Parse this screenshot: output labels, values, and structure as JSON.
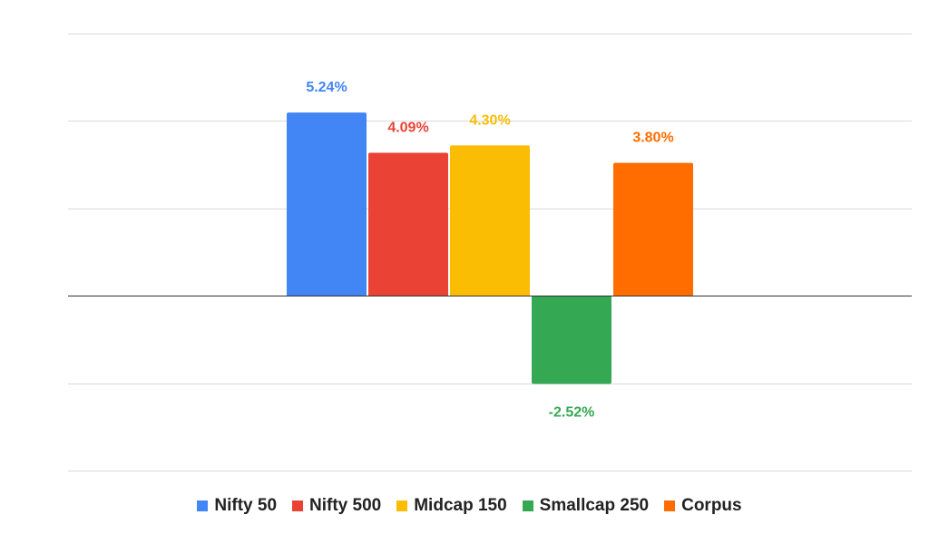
{
  "chart_data": {
    "type": "bar",
    "title": "",
    "xlabel": "",
    "ylabel": "",
    "ylim": [
      -5,
      7.5
    ],
    "grid": true,
    "legend_position": "bottom",
    "series": [
      {
        "name": "Nifty 50",
        "value": 5.24,
        "label": "5.24%",
        "color": "#4285F4"
      },
      {
        "name": "Nifty 500",
        "value": 4.09,
        "label": "4.09%",
        "color": "#EA4335"
      },
      {
        "name": "Midcap 150",
        "value": 4.3,
        "label": "4.30%",
        "color": "#FBBC04"
      },
      {
        "name": "Smallcap 250",
        "value": -2.52,
        "label": "-2.52%",
        "color": "#34A853"
      },
      {
        "name": "Corpus",
        "value": 3.8,
        "label": "3.80%",
        "color": "#FF6D01"
      }
    ]
  },
  "legend": {
    "items": [
      {
        "label": "Nifty 50",
        "color": "#4285F4"
      },
      {
        "label": "Nifty 500",
        "color": "#EA4335"
      },
      {
        "label": "Midcap 150",
        "color": "#FBBC04"
      },
      {
        "label": "Smallcap 250",
        "color": "#34A853"
      },
      {
        "label": "Corpus",
        "color": "#FF6D01"
      }
    ]
  }
}
